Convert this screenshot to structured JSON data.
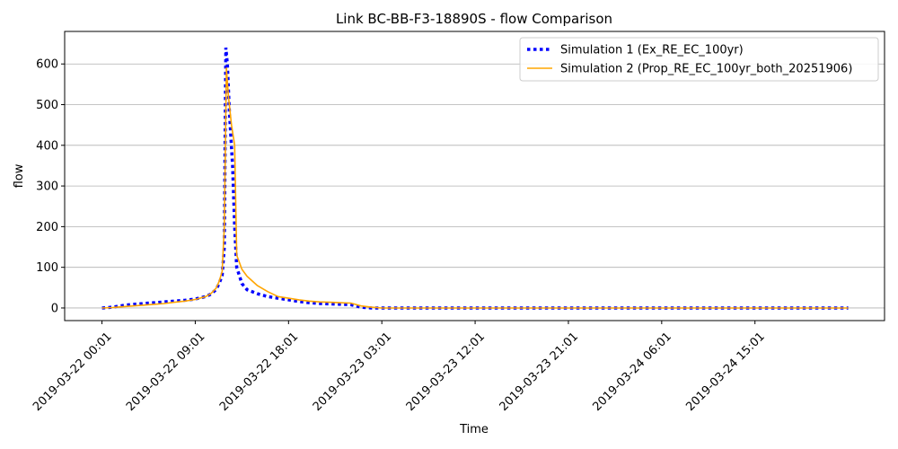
{
  "chart_data": {
    "type": "line",
    "title": "Link BC-BB-F3-18890S - flow Comparison",
    "xlabel": "Time",
    "ylabel": "flow",
    "x_unit": "hours since 2019-03-22 00:01",
    "xlim": [
      -3.6,
      75.5
    ],
    "ylim": [
      -31,
      680
    ],
    "yticks": [
      0,
      100,
      200,
      300,
      400,
      500,
      600
    ],
    "xticks": [
      {
        "x": 0,
        "label": "2019-03-22 00:01"
      },
      {
        "x": 9,
        "label": "2019-03-22 09:01"
      },
      {
        "x": 18,
        "label": "2019-03-22 18:01"
      },
      {
        "x": 27,
        "label": "2019-03-23 03:01"
      },
      {
        "x": 36,
        "label": "2019-03-23 12:01"
      },
      {
        "x": 45,
        "label": "2019-03-23 21:01"
      },
      {
        "x": 54,
        "label": "2019-03-24 06:01"
      },
      {
        "x": 63,
        "label": "2019-03-24 15:01"
      }
    ],
    "grid": "y",
    "legend": "top-right",
    "series": [
      {
        "name": "Simulation 1 (Ex_RE_EC_100yr)",
        "color": "#0000ff",
        "style": "dotted",
        "points": [
          [
            0,
            0
          ],
          [
            1,
            2
          ],
          [
            2,
            6
          ],
          [
            3,
            9
          ],
          [
            4,
            11
          ],
          [
            5,
            13
          ],
          [
            6,
            15
          ],
          [
            7,
            17
          ],
          [
            8,
            19
          ],
          [
            9,
            22
          ],
          [
            10,
            28
          ],
          [
            10.5,
            34
          ],
          [
            11,
            45
          ],
          [
            11.3,
            60
          ],
          [
            11.6,
            80
          ],
          [
            11.8,
            150
          ],
          [
            11.95,
            640
          ],
          [
            12.1,
            600
          ],
          [
            12.3,
            480
          ],
          [
            12.6,
            350
          ],
          [
            12.8,
            200
          ],
          [
            13,
            100
          ],
          [
            13.5,
            60
          ],
          [
            14,
            45
          ],
          [
            15,
            35
          ],
          [
            16,
            28
          ],
          [
            17,
            24
          ],
          [
            18,
            20
          ],
          [
            19,
            16
          ],
          [
            20,
            13
          ],
          [
            21,
            11
          ],
          [
            22,
            10
          ],
          [
            23,
            9
          ],
          [
            24,
            8
          ],
          [
            25,
            2
          ],
          [
            26,
            0
          ],
          [
            72,
            0
          ]
        ]
      },
      {
        "name": "Simulation 2 (Prop_RE_EC_100yr_both_20251906)",
        "color": "#ffa500",
        "style": "solid",
        "points": [
          [
            0,
            0
          ],
          [
            1,
            1
          ],
          [
            2,
            3
          ],
          [
            3,
            5
          ],
          [
            4,
            7
          ],
          [
            5,
            9
          ],
          [
            6,
            11
          ],
          [
            7,
            14
          ],
          [
            8,
            17
          ],
          [
            9,
            21
          ],
          [
            10,
            28
          ],
          [
            10.5,
            35
          ],
          [
            11,
            48
          ],
          [
            11.3,
            65
          ],
          [
            11.6,
            90
          ],
          [
            11.8,
            200
          ],
          [
            12,
            590
          ],
          [
            12.2,
            520
          ],
          [
            12.5,
            450
          ],
          [
            12.8,
            400
          ],
          [
            13,
            130
          ],
          [
            13.5,
            95
          ],
          [
            14,
            78
          ],
          [
            15,
            55
          ],
          [
            16,
            40
          ],
          [
            17,
            28
          ],
          [
            18,
            24
          ],
          [
            19,
            20
          ],
          [
            20,
            17
          ],
          [
            21,
            15
          ],
          [
            22,
            14
          ],
          [
            23,
            13
          ],
          [
            24,
            12
          ],
          [
            25,
            5
          ],
          [
            26,
            2
          ],
          [
            27,
            0
          ],
          [
            72,
            0
          ]
        ]
      }
    ]
  }
}
